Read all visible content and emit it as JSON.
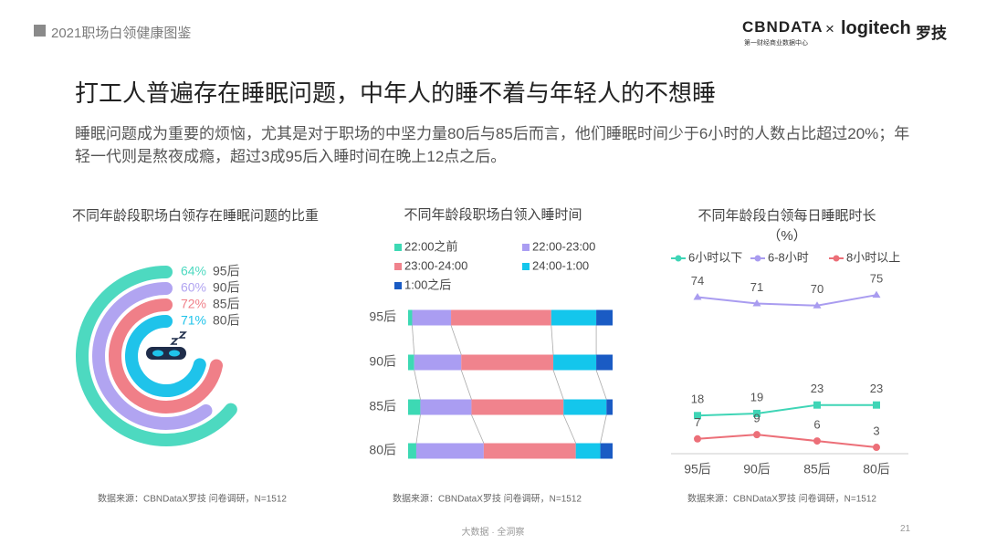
{
  "header": {
    "report": "2021职场白领健康图鉴",
    "brand1": "CBNDATA",
    "brand1_sub": "第一财经商业数据中心",
    "cross": "×",
    "brand2": "logitech",
    "brand2_cn": "罗技"
  },
  "title": "打工人普遍存在睡眠问题，中年人的睡不着与年轻人的不想睡",
  "subtitle": "睡眠问题成为重要的烦恼，尤其是对于职场的中坚力量80后与85后而言，他们睡眠时间少于6小时的人数占比超过20%；年轻一代则是熬夜成瘾，超过3成95后入睡时间在晚上12点之后。",
  "chart_data": [
    {
      "type": "radial_bar",
      "title": "不同年龄段职场白领存在睡眠问题的比重",
      "categories": [
        "95后",
        "90后",
        "85后",
        "80后"
      ],
      "values": [
        64,
        60,
        72,
        71
      ],
      "value_labels": [
        "64%",
        "60%",
        "72%",
        "71%"
      ],
      "colors": [
        "#4dd9c0",
        "#b1a4f1",
        "#f07f88",
        "#1fc3ea"
      ],
      "ylim": [
        0,
        100
      ],
      "source": "数据来源：CBNDataX罗技 问卷调研，N=1512"
    },
    {
      "type": "stacked_bar",
      "title": "不同年龄段职场白领入睡时间",
      "categories": [
        "95后",
        "90后",
        "85后",
        "80后"
      ],
      "series": [
        {
          "name": "22:00之前",
          "color": "#3dd9b4",
          "values": [
            2,
            3,
            6,
            4
          ]
        },
        {
          "name": "22:00-23:00",
          "color": "#aa9df2",
          "values": [
            19,
            23,
            25,
            33
          ]
        },
        {
          "name": "23:00-24:00",
          "color": "#f0838d",
          "values": [
            49,
            45,
            45,
            45
          ]
        },
        {
          "name": "24:00-1:00",
          "color": "#14c6ec",
          "values": [
            22,
            21,
            21,
            12
          ]
        },
        {
          "name": "1:00之后",
          "color": "#1a5bc4",
          "values": [
            8,
            8,
            3,
            6
          ]
        }
      ],
      "xlim": [
        0,
        100
      ],
      "source": "数据来源：CBNDataX罗技 问卷调研，N=1512"
    },
    {
      "type": "line",
      "title": "不同年龄段白领每日睡眠时长",
      "subtitle": "（%）",
      "categories": [
        "95后",
        "90后",
        "85后",
        "80后"
      ],
      "series": [
        {
          "name": "6小时以下",
          "color": "#3fd5b6",
          "values": [
            18,
            19,
            23,
            23
          ]
        },
        {
          "name": "6-8小时",
          "color": "#a99cf0",
          "values": [
            74,
            71,
            70,
            75
          ]
        },
        {
          "name": "8小时以上",
          "color": "#ec6f78",
          "values": [
            7,
            9,
            6,
            3
          ]
        }
      ],
      "ylim": [
        0,
        85
      ],
      "source": "数据来源：CBNDataX罗技 问卷调研，N=1512"
    }
  ],
  "footer": {
    "tagline": "大数据 · 全洞察",
    "page": "21"
  }
}
